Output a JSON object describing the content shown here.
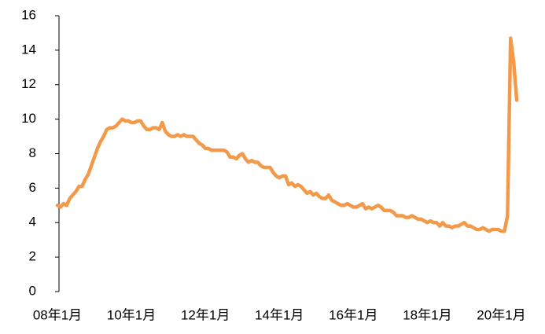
{
  "chart_data": {
    "type": "line",
    "categories": [
      "08年1月",
      null,
      null,
      null,
      null,
      null,
      null,
      null,
      null,
      null,
      null,
      null,
      null,
      null,
      null,
      null,
      null,
      null,
      null,
      null,
      null,
      null,
      null,
      null,
      "10年1月",
      null,
      null,
      null,
      null,
      null,
      null,
      null,
      null,
      null,
      null,
      null,
      null,
      null,
      null,
      null,
      null,
      null,
      null,
      null,
      null,
      null,
      null,
      null,
      "12年1月",
      null,
      null,
      null,
      null,
      null,
      null,
      null,
      null,
      null,
      null,
      null,
      null,
      null,
      null,
      null,
      null,
      null,
      null,
      null,
      null,
      null,
      null,
      null,
      "14年1月",
      null,
      null,
      null,
      null,
      null,
      null,
      null,
      null,
      null,
      null,
      null,
      null,
      null,
      null,
      null,
      null,
      null,
      null,
      null,
      null,
      null,
      null,
      null,
      "16年1月",
      null,
      null,
      null,
      null,
      null,
      null,
      null,
      null,
      null,
      null,
      null,
      null,
      null,
      null,
      null,
      null,
      null,
      null,
      null,
      null,
      null,
      null,
      null,
      "18年1月",
      null,
      null,
      null,
      null,
      null,
      null,
      null,
      null,
      null,
      null,
      null,
      null,
      null,
      null,
      null,
      null,
      null,
      null,
      null,
      null,
      null,
      null,
      null,
      "20年1月",
      null,
      null,
      null,
      null,
      null
    ],
    "values": [
      5.0,
      4.9,
      5.1,
      5.0,
      5.4,
      5.6,
      5.8,
      6.1,
      6.1,
      6.5,
      6.8,
      7.3,
      7.8,
      8.3,
      8.7,
      9.0,
      9.4,
      9.5,
      9.5,
      9.6,
      9.8,
      10.0,
      9.9,
      9.9,
      9.8,
      9.8,
      9.9,
      9.9,
      9.6,
      9.4,
      9.4,
      9.5,
      9.5,
      9.4,
      9.8,
      9.3,
      9.1,
      9.0,
      9.0,
      9.1,
      9.0,
      9.1,
      9.0,
      9.0,
      9.0,
      8.8,
      8.6,
      8.5,
      8.3,
      8.3,
      8.2,
      8.2,
      8.2,
      8.2,
      8.2,
      8.1,
      7.8,
      7.8,
      7.7,
      7.9,
      8.0,
      7.7,
      7.5,
      7.6,
      7.5,
      7.5,
      7.3,
      7.2,
      7.2,
      7.2,
      6.9,
      6.7,
      6.6,
      6.7,
      6.7,
      6.2,
      6.3,
      6.1,
      6.2,
      6.1,
      5.9,
      5.7,
      5.8,
      5.6,
      5.7,
      5.5,
      5.4,
      5.4,
      5.6,
      5.3,
      5.2,
      5.1,
      5.0,
      5.0,
      5.1,
      5.0,
      4.9,
      4.9,
      5.0,
      5.1,
      4.8,
      4.9,
      4.8,
      4.9,
      5.0,
      4.9,
      4.7,
      4.7,
      4.7,
      4.6,
      4.4,
      4.4,
      4.4,
      4.3,
      4.3,
      4.4,
      4.3,
      4.2,
      4.2,
      4.1,
      4.0,
      4.1,
      4.0,
      4.0,
      3.8,
      4.0,
      3.8,
      3.8,
      3.7,
      3.8,
      3.8,
      3.9,
      4.0,
      3.8,
      3.8,
      3.7,
      3.6,
      3.6,
      3.7,
      3.6,
      3.5,
      3.6,
      3.6,
      3.6,
      3.5,
      3.5,
      4.4,
      14.7,
      13.3,
      11.1
    ],
    "color": "#f39a4a",
    "ylim": [
      0,
      16
    ],
    "yticks": [
      0,
      2,
      4,
      6,
      8,
      10,
      12,
      14,
      16
    ]
  }
}
